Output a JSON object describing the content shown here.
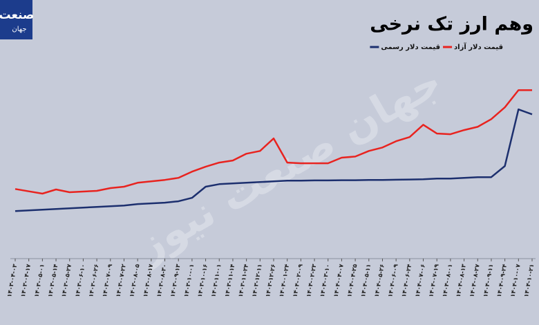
{
  "logo": [
    "صنعت",
    "جهان"
  ],
  "watermark": "جهان صنعت نیوز",
  "chart_data": {
    "type": "line",
    "title": "وهم ارز تک نرخی",
    "categories": [
      "۱۴۰۳-۰۴-۰۳",
      "۱۴۰۳-۰۴-۱۷",
      "۱۴۰۳-۰۵-۰۱",
      "۱۴۰۳-۰۵-۱۴",
      "۱۴۰۳-۰۵-۲۷",
      "۱۴۰۳-۰۶-۱۰",
      "۱۴۰۳-۰۶-۲۶",
      "۱۴۰۳-۰۷-۰۹",
      "۱۴۰۳-۰۷-۲۲",
      "۱۴۰۳-۰۸-۰۵",
      "۱۴۰۳-۰۸-۱۷",
      "۱۴۰۳-۰۸-۳۰",
      "۱۴۰۳-۰۹-۱۳",
      "۱۴۰۳-۱۰-۰۱",
      "۱۴۰۳-۱۰-۱۶",
      "۱۴۰۳-۱۱-۰۱",
      "۱۴۰۳-۱۱-۱۴",
      "۱۴۰۳-۱۱-۲۴",
      "۱۴۰۳-۱۲-۱۱",
      "۱۴۰۳-۱۲-۲۶",
      "۱۴۰۴-۰۱-۲۴",
      "۱۴۰۴-۰۲-۰۹",
      "۱۴۰۴-۰۲-۲۳",
      "۱۴۰۴-۰۳-۱۰",
      "۱۴۰۴-۰۴-۰۷",
      "۱۴۰۴-۰۴-۲۵",
      "۱۴۰۴-۰۵-۱۱",
      "۱۴۰۴-۰۵-۲۶",
      "۱۴۰۴-۰۶-۰۹",
      "۱۴۰۴-۰۶-۲۴",
      "۱۴۰۴-۰۷-۰۶",
      "۱۴۰۴-۰۷-۱۹",
      "۱۴۰۴-۰۸-۰۱",
      "۱۴۰۴-۰۸-۱۳",
      "۱۴۰۴-۰۸-۲۷",
      "۱۴۰۴-۰۹-۱۱",
      "۱۴۰۴-۰۹-۲۴",
      "۱۴۰۴-۱۰-۰۷",
      "۱۴۰۴-۱۰-۲۱"
    ],
    "series": [
      {
        "name": "قیمت دلار آزاد",
        "color": "#e8231f",
        "values": [
          30,
          29,
          28,
          29.8,
          28.6,
          28.9,
          29.2,
          30.4,
          31,
          32.7,
          33.3,
          33.9,
          34.8,
          37.5,
          39.6,
          41.4,
          42.3,
          45.2,
          46.4,
          51.8,
          41.4,
          41.1,
          41.1,
          41.1,
          43.5,
          44,
          46.4,
          47.9,
          50.6,
          52.4,
          57.7,
          53.9,
          53.6,
          55.4,
          56.8,
          60.1,
          65.2,
          72.6,
          72.6
        ]
      },
      {
        "name": "قیمت دلار رسمی",
        "color": "#1c2f6e",
        "values": [
          20.5,
          20.8,
          21.1,
          21.4,
          21.7,
          22,
          22.3,
          22.6,
          22.9,
          23.5,
          23.8,
          24.1,
          24.7,
          26.2,
          31,
          32.1,
          32.4,
          32.7,
          33,
          33.3,
          33.6,
          33.6,
          33.7,
          33.7,
          33.8,
          33.8,
          33.9,
          33.9,
          34,
          34.1,
          34.2,
          34.5,
          34.5,
          34.8,
          35.1,
          35.1,
          39.9,
          64.3,
          62.2
        ]
      }
    ],
    "ylim": [
      0,
      90
    ],
    "legend": "top-right"
  }
}
